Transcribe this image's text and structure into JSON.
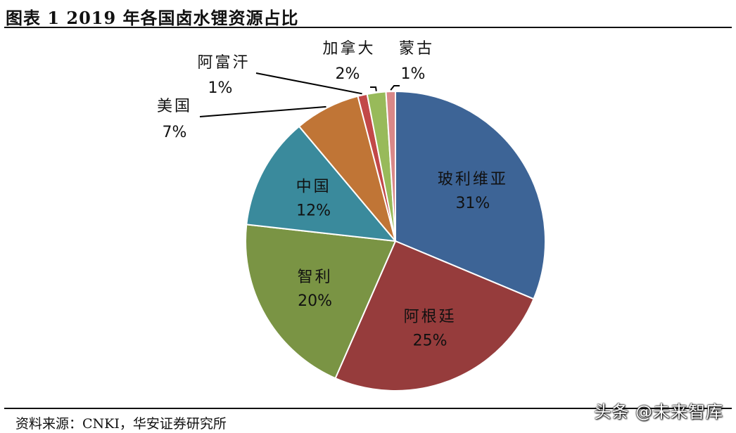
{
  "header": {
    "title": "图表 1 2019 年各国卤水锂资源占比"
  },
  "chart_data": {
    "type": "pie",
    "title": "图表 1 2019 年各国卤水锂资源占比",
    "slices": [
      {
        "name": "玻利维亚",
        "value": 31,
        "label": "31%",
        "color": "#3D6496",
        "label_inside": true
      },
      {
        "name": "阿根廷",
        "value": 25,
        "label": "25%",
        "color": "#963C3C",
        "label_inside": true
      },
      {
        "name": "智利",
        "value": 20,
        "label": "20%",
        "color": "#7A9444",
        "label_inside": true
      },
      {
        "name": "中国",
        "value": 12,
        "label": "12%",
        "color": "#3A8A9C",
        "label_inside": true
      },
      {
        "name": "美国",
        "value": 7,
        "label": "7%",
        "color": "#C07536",
        "label_inside": false
      },
      {
        "name": "阿富汗",
        "value": 1,
        "label": "1%",
        "color": "#C24848",
        "label_inside": false
      },
      {
        "name": "加拿大",
        "value": 2,
        "label": "2%",
        "color": "#98BA5A",
        "label_inside": false
      },
      {
        "name": "蒙古",
        "value": 1,
        "label": "1%",
        "color": "#D98888",
        "label_inside": false
      }
    ],
    "start_angle_deg": 0,
    "direction": "clockwise",
    "slice_border_color": "#ffffff",
    "legend": "none"
  },
  "footer": {
    "source": "资料来源：CNKI，华安证券研究所",
    "watermark": "头条 @未来智库"
  }
}
